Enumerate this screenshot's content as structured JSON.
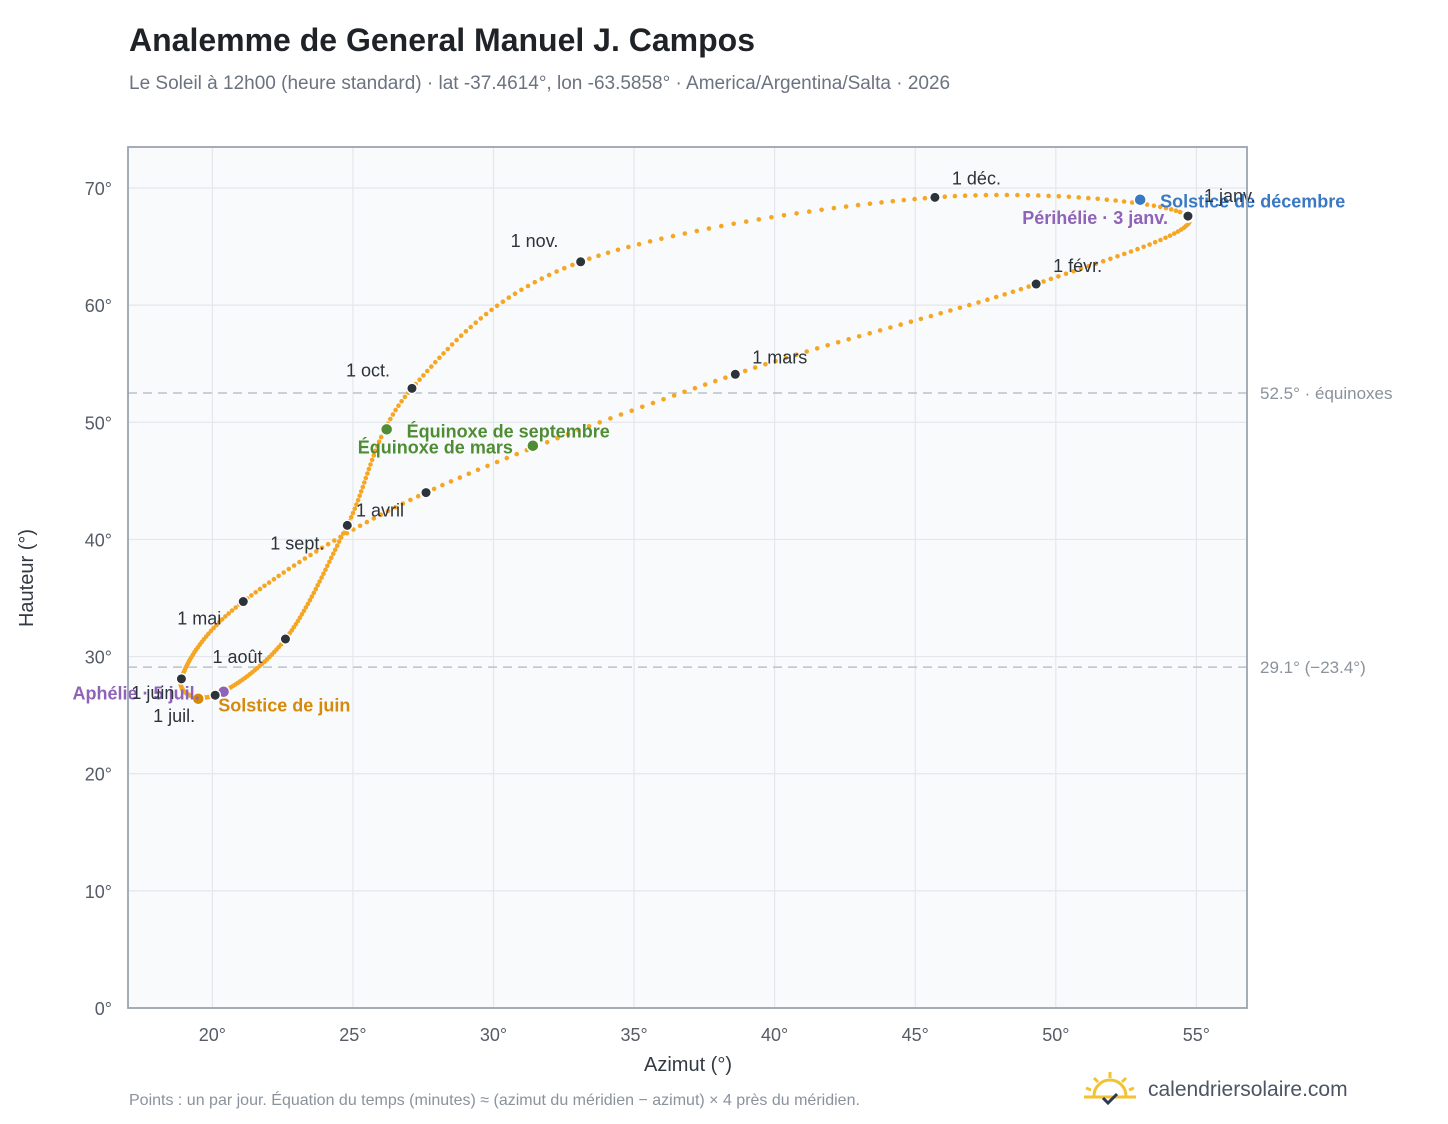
{
  "header": {
    "title": "Analemme de General Manuel J. Campos",
    "subtitle": "Le Soleil à 12h00 (heure standard) · lat -37.4614°, lon -63.5858° · America/Argentina/Salta · 2026"
  },
  "footer": {
    "note": "Points : un par jour. Équation du temps (minutes) ≈ (azimut du méridien − azimut) × 4 près du méridien.",
    "brand": "calendriersolaire.com",
    "brand_icon": "sun-calendar-icon"
  },
  "colors": {
    "curve": "#f5a623",
    "month_dot": "#2d333b",
    "june_solstice": "#d68a0c",
    "december_solstice": "#3a78c2",
    "equinox": "#4e8d34",
    "apsis": "#8e63b8",
    "refline": "#b9c3cc",
    "plot_bg": "#f9fafc",
    "grid": "#e3e7ec",
    "frame": "#9aa4b0"
  },
  "chart_data": {
    "type": "scatter",
    "xlabel": "Azimut (°)",
    "ylabel": "Hauteur (°)",
    "xlim": [
      17,
      56.8
    ],
    "ylim": [
      0,
      73.5
    ],
    "xticks": [
      20,
      25,
      30,
      35,
      40,
      45,
      50,
      55
    ],
    "yticks": [
      0,
      10,
      20,
      30,
      40,
      50,
      60,
      70
    ],
    "xtick_labels": [
      "20°",
      "25°",
      "30°",
      "35°",
      "40°",
      "45°",
      "50°",
      "55°"
    ],
    "ytick_labels": [
      "0°",
      "10°",
      "20°",
      "30°",
      "40°",
      "50°",
      "60°",
      "70°"
    ],
    "grid": true,
    "reference_lines": [
      {
        "y": 52.5,
        "label": "52.5° · équinoxes"
      },
      {
        "y": 29.1,
        "label": "29.1° (−23.4°)"
      }
    ],
    "month_points": [
      {
        "label": "1 janv.",
        "x": 54.7,
        "y": 67.6
      },
      {
        "label": "1 févr.",
        "x": 49.3,
        "y": 61.8
      },
      {
        "label": "1 mars",
        "x": 38.6,
        "y": 54.1
      },
      {
        "label": "1 avril",
        "x": 27.6,
        "y": 44.0
      },
      {
        "label": "1 mai",
        "x": 21.1,
        "y": 34.7
      },
      {
        "label": "1 juin",
        "x": 18.9,
        "y": 28.1
      },
      {
        "label": "1 juil.",
        "x": 20.1,
        "y": 26.7
      },
      {
        "label": "1 août",
        "x": 22.6,
        "y": 31.5
      },
      {
        "label": "1 sept.",
        "x": 24.8,
        "y": 41.2
      },
      {
        "label": "1 oct.",
        "x": 27.1,
        "y": 52.9
      },
      {
        "label": "1 nov.",
        "x": 33.1,
        "y": 63.7
      },
      {
        "label": "1 déc.",
        "x": 45.7,
        "y": 69.2
      }
    ],
    "events": [
      {
        "label": "Solstice de juin",
        "x": 19.5,
        "y": 26.4,
        "color_key": "june_solstice"
      },
      {
        "label": "Solstice de décembre",
        "x": 53.0,
        "y": 69.0,
        "color_key": "december_solstice"
      },
      {
        "label": "Équinoxe de mars",
        "x": 31.4,
        "y": 48.0,
        "color_key": "equinox"
      },
      {
        "label": "Équinoxe de septembre",
        "x": 26.2,
        "y": 49.4,
        "color_key": "equinox"
      },
      {
        "label": "Périhélie · 3 janv.",
        "x": 54.7,
        "y": 67.6,
        "color_key": "apsis"
      },
      {
        "label": "Aphélie · 5 juil.",
        "x": 20.4,
        "y": 27.0,
        "color_key": "apsis"
      }
    ]
  }
}
